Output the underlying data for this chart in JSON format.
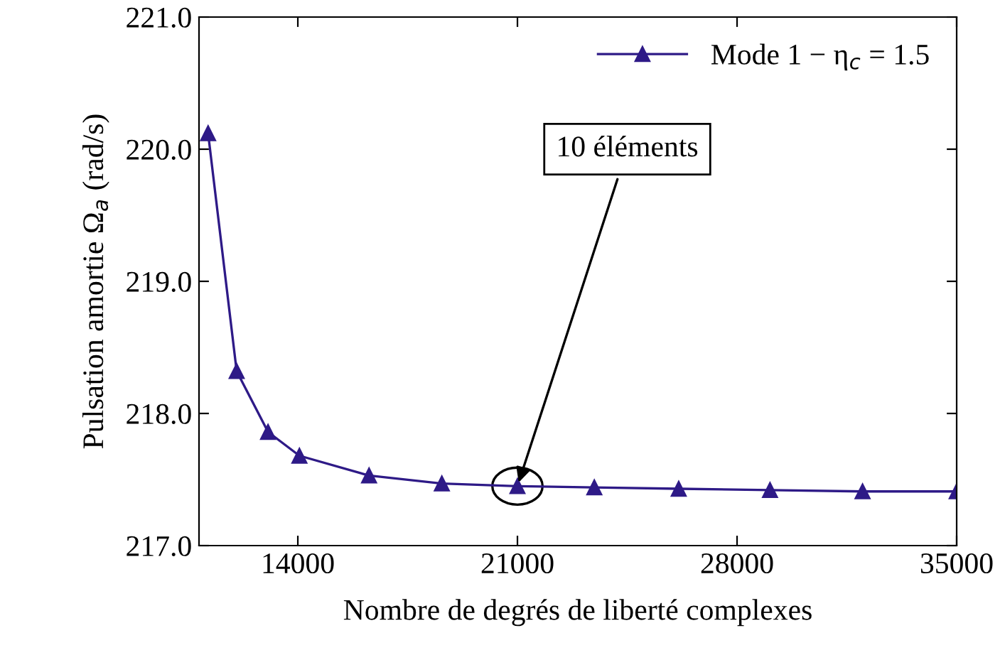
{
  "chart_data": {
    "type": "line",
    "xlabel": "Nombre de degrés de liberté complexes",
    "ylabel": "Pulsation amortie Ω$_{a}$ (rad/s)",
    "series": [
      {
        "name": "Mode 1 − η$_{c}$ = 1.5",
        "color": "#2e1a87",
        "x": [
          11140,
          12050,
          13050,
          14050,
          16270,
          18590,
          21000,
          23450,
          26140,
          29050,
          32000,
          35000
        ],
        "values": [
          220.12,
          218.32,
          217.86,
          217.68,
          217.53,
          217.47,
          217.45,
          217.44,
          217.43,
          217.42,
          217.41,
          217.41
        ]
      }
    ],
    "xlim": [
      10850,
      35000
    ],
    "ylim": [
      217.0,
      221.0
    ],
    "xticks": [
      14000,
      21000,
      28000,
      35000
    ],
    "yticks": [
      {
        "value": 217,
        "label": "217.0"
      },
      {
        "value": 218,
        "label": "218.0"
      },
      {
        "value": 219,
        "label": "219.0"
      },
      {
        "value": 220,
        "label": "220.0"
      },
      {
        "value": 221,
        "label": "221.0"
      }
    ],
    "annotations": [
      {
        "text": "10 éléments",
        "x": 21000,
        "y": 217.45
      }
    ],
    "marker": "triangle",
    "line_style": "solid",
    "legend": "top right",
    "grid": false
  }
}
